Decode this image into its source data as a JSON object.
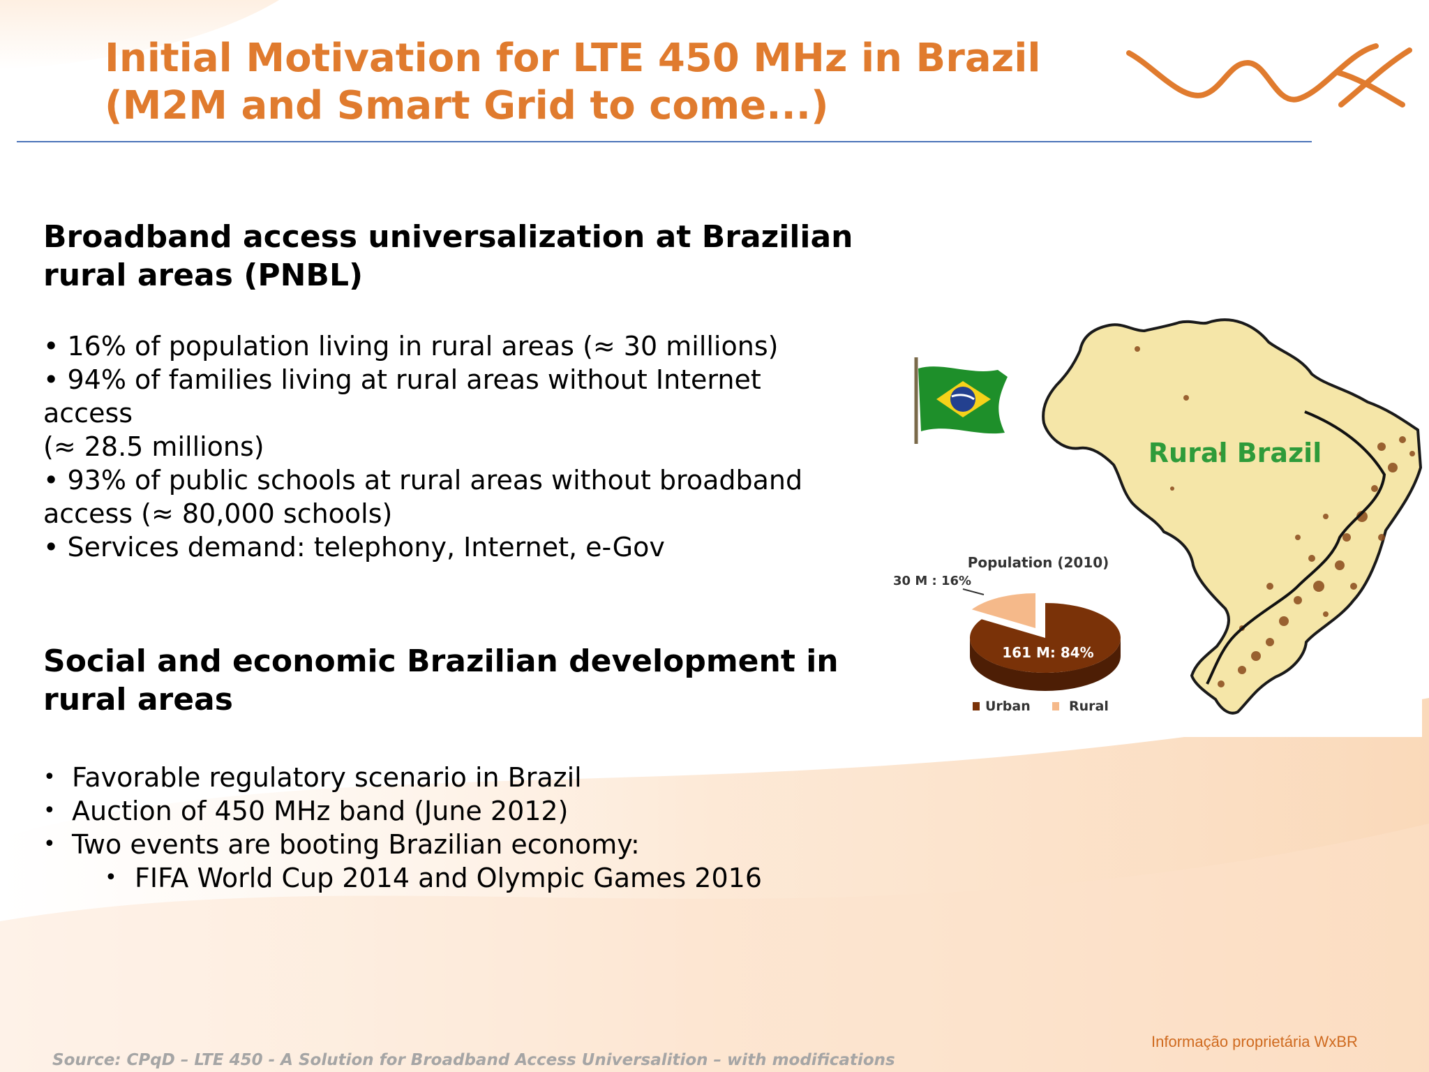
{
  "slide": {
    "title_line1": "Initial Motivation for LTE 450 MHz in Brazil",
    "title_line2": "(M2M and Smart Grid to come...)",
    "colors": {
      "title": "#e07b2e",
      "rule": "#4a72b8",
      "footer": "#cf6a1f"
    }
  },
  "section1": {
    "heading_line1": "Broadband access universalization at Brazilian",
    "heading_line2": "rural areas (PNBL)",
    "bullets": [
      {
        "lines": [
          "• 16% of population living in rural areas (≈  30 millions)"
        ]
      },
      {
        "lines": [
          "• 94% of families living at rural areas without Internet",
          "access",
          "(≈  28.5 millions)"
        ]
      },
      {
        "lines": [
          "• 93% of public schools at rural areas without broadband",
          "access  (≈  80,000 schools)"
        ]
      },
      {
        "lines": [
          "• Services demand: telephony, Internet, e-Gov"
        ]
      }
    ]
  },
  "section2": {
    "heading_line1": "Social and economic Brazilian development in",
    "heading_line2": "rural areas",
    "bullet_marker": "•",
    "bullets": [
      "Favorable regulatory scenario in Brazil",
      "Auction of 450 MHz band (June 2012)",
      "Two events are booting Brazilian economy:"
    ],
    "sub_bullet": "FIFA World Cup 2014 and Olympic Games 2016"
  },
  "figure": {
    "map_label": "Rural Brazil",
    "map_label_color": "#2e9b3a",
    "pie_title": "Population (2010)",
    "rural_callout": "30 M : 16%",
    "urban_label": "161 M: 84%",
    "legend_urban": "Urban",
    "legend_rural": "Rural",
    "pie_shares": {
      "urban": 0.84,
      "rural": 0.16
    },
    "colors": {
      "urban": "#7a3208",
      "rural": "#f5b98a",
      "map_fill": "#f5e6a8"
    },
    "icons": [
      "brazil-flag-icon",
      "brazil-map-icon"
    ]
  },
  "footer": {
    "source": "Source: CPqD –  LTE 450 - A Solution for Broadband Access Universalition – with modifications",
    "proprietary": "Informação proprietária WxBR"
  }
}
